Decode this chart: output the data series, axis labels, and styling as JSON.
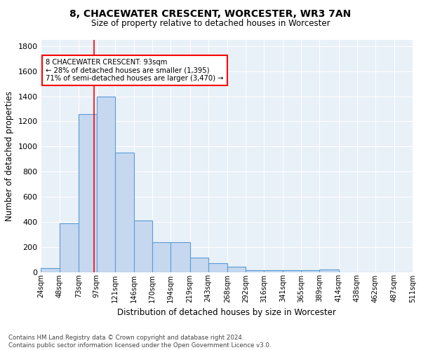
{
  "title1": "8, CHACEWATER CRESCENT, WORCESTER, WR3 7AN",
  "title2": "Size of property relative to detached houses in Worcester",
  "xlabel": "Distribution of detached houses by size in Worcester",
  "ylabel": "Number of detached properties",
  "footnote": "Contains HM Land Registry data © Crown copyright and database right 2024.\nContains public sector information licensed under the Open Government Licence v3.0.",
  "bar_edges": [
    24,
    48,
    73,
    97,
    121,
    146,
    170,
    194,
    219,
    243,
    268,
    292,
    316,
    341,
    365,
    389,
    414,
    438,
    462,
    487,
    511
  ],
  "bar_heights": [
    30,
    390,
    1260,
    1400,
    950,
    410,
    235,
    235,
    115,
    70,
    45,
    15,
    15,
    15,
    15,
    20,
    0,
    0,
    0,
    0
  ],
  "bar_color": "#c5d8f0",
  "bar_edge_color": "#5b9bd5",
  "property_line_x": 93,
  "property_line_color": "red",
  "annotation_text": "8 CHACEWATER CRESCENT: 93sqm\n← 28% of detached houses are smaller (1,395)\n71% of semi-detached houses are larger (3,470) →",
  "annotation_box_color": "white",
  "annotation_box_edge_color": "red",
  "ylim": [
    0,
    1850
  ],
  "yticks": [
    0,
    200,
    400,
    600,
    800,
    1000,
    1200,
    1400,
    1600,
    1800
  ],
  "tick_labels": [
    "24sqm",
    "48sqm",
    "73sqm",
    "97sqm",
    "121sqm",
    "146sqm",
    "170sqm",
    "194sqm",
    "219sqm",
    "243sqm",
    "268sqm",
    "292sqm",
    "316sqm",
    "341sqm",
    "365sqm",
    "389sqm",
    "414sqm",
    "438sqm",
    "462sqm",
    "487sqm",
    "511sqm"
  ],
  "bg_color": "#e8f0f8",
  "fig_bg_color": "#ffffff",
  "grid_color": "#ffffff"
}
